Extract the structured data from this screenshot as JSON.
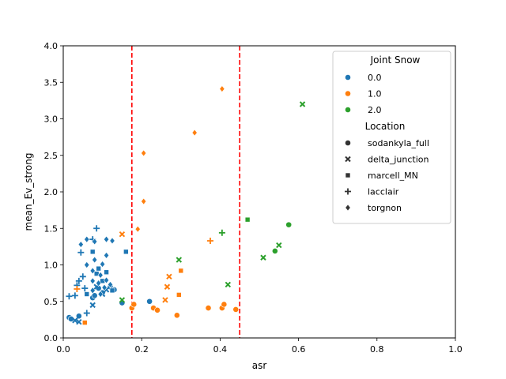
{
  "chart_data": {
    "type": "scatter",
    "xlabel": "asr",
    "ylabel": "mean_Ev_strong",
    "xlim": [
      0,
      1.0
    ],
    "ylim": [
      0,
      4.0
    ],
    "xticks": [
      "0.0",
      "0.2",
      "0.4",
      "0.6",
      "0.8",
      "1.0"
    ],
    "yticks": [
      "0.0",
      "0.5",
      "1.0",
      "1.5",
      "2.0",
      "2.5",
      "3.0",
      "3.5",
      "4.0"
    ],
    "grid": false,
    "vlines": [
      {
        "x": 0.175,
        "color": "#ff0000",
        "style": "dashed"
      },
      {
        "x": 0.45,
        "color": "#ff0000",
        "style": "dashed"
      }
    ],
    "legend": {
      "placement": "top-right",
      "hue_title": "Joint Snow",
      "hue_entries": [
        {
          "label": "0.0",
          "color": "#1f77b4"
        },
        {
          "label": "1.0",
          "color": "#ff7f0e"
        },
        {
          "label": "2.0",
          "color": "#2ca02c"
        }
      ],
      "style_title": "Location",
      "style_entries": [
        {
          "label": "sodankyla_full",
          "marker": "circle"
        },
        {
          "label": "delta_junction",
          "marker": "x"
        },
        {
          "label": "marcell_MN",
          "marker": "square"
        },
        {
          "label": "lacclair",
          "marker": "plus"
        },
        {
          "label": "torgnon",
          "marker": "diamond"
        }
      ]
    },
    "series": [
      {
        "name": "0.0",
        "points": [
          {
            "x": 0.015,
            "y": 0.28,
            "m": "circle"
          },
          {
            "x": 0.02,
            "y": 0.26,
            "m": "circle"
          },
          {
            "x": 0.04,
            "y": 0.3,
            "m": "circle"
          },
          {
            "x": 0.075,
            "y": 0.55,
            "m": "circle"
          },
          {
            "x": 0.09,
            "y": 0.68,
            "m": "circle"
          },
          {
            "x": 0.1,
            "y": 0.62,
            "m": "circle"
          },
          {
            "x": 0.12,
            "y": 0.7,
            "m": "circle"
          },
          {
            "x": 0.13,
            "y": 0.66,
            "m": "circle"
          },
          {
            "x": 0.15,
            "y": 0.48,
            "m": "circle"
          },
          {
            "x": 0.22,
            "y": 0.5,
            "m": "circle"
          },
          {
            "x": 0.08,
            "y": 0.58,
            "m": "circle"
          },
          {
            "x": 0.03,
            "y": 0.24,
            "m": "x"
          },
          {
            "x": 0.04,
            "y": 0.22,
            "m": "x"
          },
          {
            "x": 0.075,
            "y": 0.45,
            "m": "x"
          },
          {
            "x": 0.085,
            "y": 0.7,
            "m": "x"
          },
          {
            "x": 0.1,
            "y": 0.6,
            "m": "x"
          },
          {
            "x": 0.11,
            "y": 0.66,
            "m": "x"
          },
          {
            "x": 0.06,
            "y": 0.6,
            "m": "square"
          },
          {
            "x": 0.075,
            "y": 1.18,
            "m": "square"
          },
          {
            "x": 0.085,
            "y": 0.88,
            "m": "square"
          },
          {
            "x": 0.1,
            "y": 0.78,
            "m": "square"
          },
          {
            "x": 0.11,
            "y": 0.9,
            "m": "square"
          },
          {
            "x": 0.125,
            "y": 0.65,
            "m": "square"
          },
          {
            "x": 0.16,
            "y": 1.18,
            "m": "square"
          },
          {
            "x": 0.09,
            "y": 0.95,
            "m": "square"
          },
          {
            "x": 0.015,
            "y": 0.57,
            "m": "plus"
          },
          {
            "x": 0.03,
            "y": 0.58,
            "m": "plus"
          },
          {
            "x": 0.035,
            "y": 0.72,
            "m": "plus"
          },
          {
            "x": 0.04,
            "y": 0.78,
            "m": "plus"
          },
          {
            "x": 0.05,
            "y": 0.84,
            "m": "plus"
          },
          {
            "x": 0.045,
            "y": 1.17,
            "m": "plus"
          },
          {
            "x": 0.055,
            "y": 0.68,
            "m": "plus"
          },
          {
            "x": 0.075,
            "y": 1.35,
            "m": "plus"
          },
          {
            "x": 0.085,
            "y": 1.5,
            "m": "plus"
          },
          {
            "x": 0.06,
            "y": 0.34,
            "m": "plus"
          },
          {
            "x": 0.045,
            "y": 1.28,
            "m": "diamond"
          },
          {
            "x": 0.06,
            "y": 1.35,
            "m": "diamond"
          },
          {
            "x": 0.08,
            "y": 1.32,
            "m": "diamond"
          },
          {
            "x": 0.06,
            "y": 1.0,
            "m": "diamond"
          },
          {
            "x": 0.075,
            "y": 0.92,
            "m": "diamond"
          },
          {
            "x": 0.08,
            "y": 1.07,
            "m": "diamond"
          },
          {
            "x": 0.095,
            "y": 0.86,
            "m": "diamond"
          },
          {
            "x": 0.1,
            "y": 1.01,
            "m": "diamond"
          },
          {
            "x": 0.11,
            "y": 1.13,
            "m": "diamond"
          },
          {
            "x": 0.11,
            "y": 1.35,
            "m": "diamond"
          },
          {
            "x": 0.125,
            "y": 1.33,
            "m": "diamond"
          },
          {
            "x": 0.075,
            "y": 0.78,
            "m": "diamond"
          },
          {
            "x": 0.09,
            "y": 0.75,
            "m": "diamond"
          },
          {
            "x": 0.105,
            "y": 0.69,
            "m": "diamond"
          },
          {
            "x": 0.11,
            "y": 0.79,
            "m": "diamond"
          },
          {
            "x": 0.12,
            "y": 0.73,
            "m": "diamond"
          },
          {
            "x": 0.075,
            "y": 0.65,
            "m": "diamond"
          },
          {
            "x": 0.095,
            "y": 0.6,
            "m": "diamond"
          }
        ]
      },
      {
        "name": "1.0",
        "points": [
          {
            "x": 0.175,
            "y": 0.41,
            "m": "circle"
          },
          {
            "x": 0.18,
            "y": 0.46,
            "m": "circle"
          },
          {
            "x": 0.23,
            "y": 0.41,
            "m": "circle"
          },
          {
            "x": 0.24,
            "y": 0.38,
            "m": "circle"
          },
          {
            "x": 0.29,
            "y": 0.31,
            "m": "circle"
          },
          {
            "x": 0.37,
            "y": 0.41,
            "m": "circle"
          },
          {
            "x": 0.405,
            "y": 0.41,
            "m": "circle"
          },
          {
            "x": 0.41,
            "y": 0.46,
            "m": "circle"
          },
          {
            "x": 0.44,
            "y": 0.39,
            "m": "circle"
          },
          {
            "x": 0.15,
            "y": 1.42,
            "m": "x"
          },
          {
            "x": 0.26,
            "y": 0.52,
            "m": "x"
          },
          {
            "x": 0.265,
            "y": 0.7,
            "m": "x"
          },
          {
            "x": 0.27,
            "y": 0.84,
            "m": "x"
          },
          {
            "x": 0.055,
            "y": 0.21,
            "m": "square"
          },
          {
            "x": 0.295,
            "y": 0.59,
            "m": "square"
          },
          {
            "x": 0.3,
            "y": 0.92,
            "m": "square"
          },
          {
            "x": 0.035,
            "y": 0.67,
            "m": "plus"
          },
          {
            "x": 0.375,
            "y": 1.33,
            "m": "plus"
          },
          {
            "x": 0.19,
            "y": 1.49,
            "m": "diamond"
          },
          {
            "x": 0.205,
            "y": 1.87,
            "m": "diamond"
          },
          {
            "x": 0.205,
            "y": 2.53,
            "m": "diamond"
          },
          {
            "x": 0.335,
            "y": 2.81,
            "m": "diamond"
          },
          {
            "x": 0.405,
            "y": 3.41,
            "m": "diamond"
          }
        ]
      },
      {
        "name": "2.0",
        "points": [
          {
            "x": 0.54,
            "y": 1.19,
            "m": "circle"
          },
          {
            "x": 0.575,
            "y": 1.55,
            "m": "circle"
          },
          {
            "x": 0.15,
            "y": 0.52,
            "m": "x"
          },
          {
            "x": 0.295,
            "y": 1.07,
            "m": "x"
          },
          {
            "x": 0.42,
            "y": 0.73,
            "m": "x"
          },
          {
            "x": 0.51,
            "y": 1.1,
            "m": "x"
          },
          {
            "x": 0.55,
            "y": 1.27,
            "m": "x"
          },
          {
            "x": 0.61,
            "y": 3.2,
            "m": "x"
          },
          {
            "x": 0.47,
            "y": 1.62,
            "m": "square"
          },
          {
            "x": 0.405,
            "y": 1.44,
            "m": "plus"
          }
        ]
      }
    ]
  }
}
